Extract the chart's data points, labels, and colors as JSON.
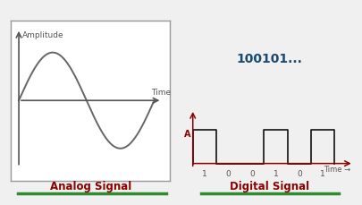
{
  "bg_color": "#f0f0f0",
  "analog_box_facecolor": "#ffffff",
  "analog_box_edgecolor": "#999999",
  "analog_wave_color": "#666666",
  "analog_axis_color": "#555555",
  "analog_label": "Analog Signal",
  "analog_label_color": "#8B0000",
  "analog_underline_color": "#2e8b2e",
  "text_amplitude": "Amplitude",
  "text_time": "Time",
  "digital_box_facecolor": "#c8eef5",
  "digital_box_edgecolor": "#5599aa",
  "digital_binary_text": "100101...",
  "digital_binary_color": "#1a4a6e",
  "digital_label": "Digital Signal",
  "digital_label_color": "#8B0000",
  "digital_underline_color": "#2e8b2e",
  "digital_axis_color": "#8B0000",
  "digital_wave_color": "#111111",
  "digital_bits": [
    1,
    0,
    0,
    1,
    0,
    1
  ],
  "digital_bit_labels": [
    "1",
    "0",
    "0",
    "1",
    "0",
    "1"
  ]
}
